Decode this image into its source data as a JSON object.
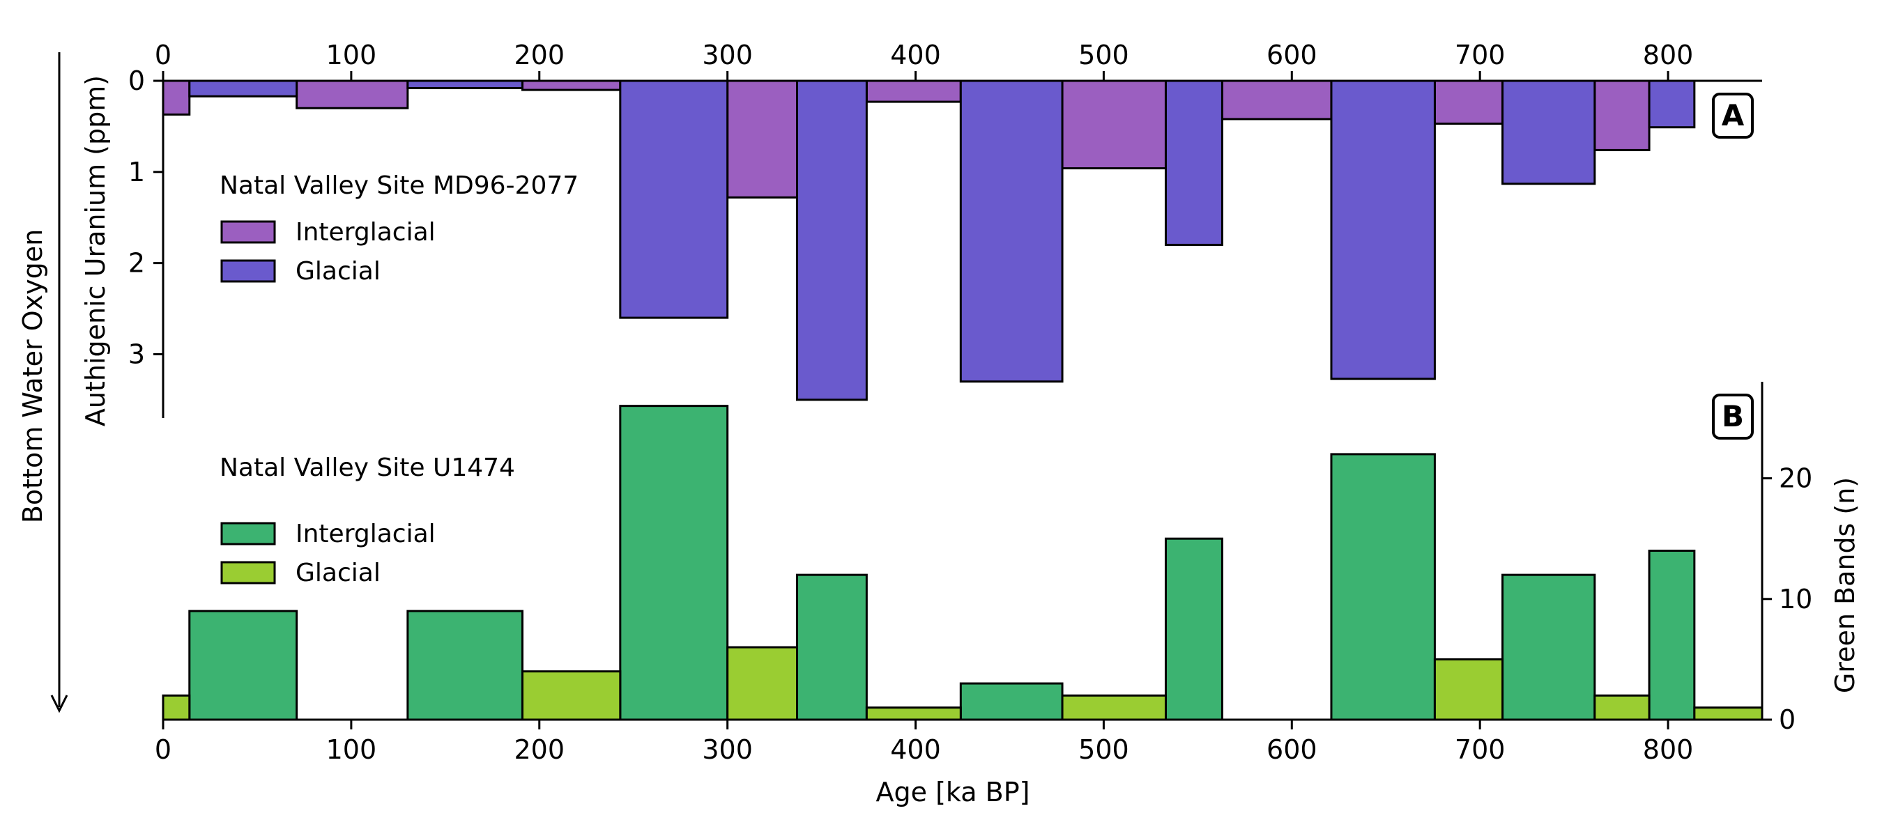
{
  "chart_data": [
    {
      "panel": "A",
      "type": "bar",
      "legend_title": "Natal Valley Site MD96-2077",
      "ylabel": "Authigenic Uranium (ppm)",
      "ylim": [
        0,
        3.7
      ],
      "y_inverted": true,
      "yticks": [
        0,
        1,
        2,
        3
      ],
      "xticks_top": [
        0,
        100,
        200,
        300,
        400,
        500,
        600,
        700,
        800
      ],
      "legend_placement": "left",
      "series": [
        {
          "name": "Interglacial",
          "color": "#9b5fc0",
          "bins": [
            {
              "x0": 0,
              "x1": 14,
              "value": 0.37
            },
            {
              "x0": 71,
              "x1": 130,
              "value": 0.3
            },
            {
              "x0": 191,
              "x1": 243,
              "value": 0.1
            },
            {
              "x0": 300,
              "x1": 337,
              "value": 1.28
            },
            {
              "x0": 374,
              "x1": 424,
              "value": 0.23
            },
            {
              "x0": 478,
              "x1": 533,
              "value": 0.96
            },
            {
              "x0": 563,
              "x1": 621,
              "value": 0.42
            },
            {
              "x0": 676,
              "x1": 712,
              "value": 0.47
            },
            {
              "x0": 761,
              "x1": 790,
              "value": 0.76
            }
          ]
        },
        {
          "name": "Glacial",
          "color": "#6a5acd",
          "bins": [
            {
              "x0": 14,
              "x1": 71,
              "value": 0.17
            },
            {
              "x0": 130,
              "x1": 191,
              "value": 0.08
            },
            {
              "x0": 243,
              "x1": 300,
              "value": 2.6
            },
            {
              "x0": 337,
              "x1": 374,
              "value": 3.5
            },
            {
              "x0": 424,
              "x1": 478,
              "value": 3.3
            },
            {
              "x0": 533,
              "x1": 563,
              "value": 1.8
            },
            {
              "x0": 621,
              "x1": 676,
              "value": 3.27
            },
            {
              "x0": 712,
              "x1": 761,
              "value": 1.13
            },
            {
              "x0": 790,
              "x1": 814,
              "value": 0.51
            }
          ]
        }
      ]
    },
    {
      "panel": "B",
      "type": "bar",
      "legend_title": "Natal Valley Site U1474",
      "ylabel": "Green Bands (n)",
      "ylim": [
        0,
        28
      ],
      "yticks": [
        0,
        10,
        20
      ],
      "xlabel": "Age [ka BP]",
      "xticks": [
        0,
        100,
        200,
        300,
        400,
        500,
        600,
        700,
        800
      ],
      "xlim": [
        0,
        850
      ],
      "legend_placement": "left",
      "series": [
        {
          "name": "Interglacial",
          "color": "#3cb371",
          "bins": [
            {
              "x0": 14,
              "x1": 71,
              "value": 9
            },
            {
              "x0": 130,
              "x1": 191,
              "value": 9
            },
            {
              "x0": 243,
              "x1": 300,
              "value": 26
            },
            {
              "x0": 337,
              "x1": 374,
              "value": 12
            },
            {
              "x0": 424,
              "x1": 478,
              "value": 3
            },
            {
              "x0": 533,
              "x1": 563,
              "value": 15
            },
            {
              "x0": 621,
              "x1": 676,
              "value": 22
            },
            {
              "x0": 712,
              "x1": 761,
              "value": 12
            },
            {
              "x0": 790,
              "x1": 814,
              "value": 14
            }
          ]
        },
        {
          "name": "Glacial",
          "color": "#9acd32",
          "bins": [
            {
              "x0": 0,
              "x1": 14,
              "value": 2
            },
            {
              "x0": 191,
              "x1": 243,
              "value": 4
            },
            {
              "x0": 300,
              "x1": 337,
              "value": 6
            },
            {
              "x0": 374,
              "x1": 424,
              "value": 1
            },
            {
              "x0": 478,
              "x1": 533,
              "value": 2
            },
            {
              "x0": 676,
              "x1": 712,
              "value": 5
            },
            {
              "x0": 761,
              "x1": 790,
              "value": 2
            },
            {
              "x0": 814,
              "x1": 850,
              "value": 1
            }
          ]
        }
      ]
    }
  ],
  "side_label": "Bottom Water Oxygen",
  "panel_labels": {
    "a": "A",
    "b": "B"
  }
}
